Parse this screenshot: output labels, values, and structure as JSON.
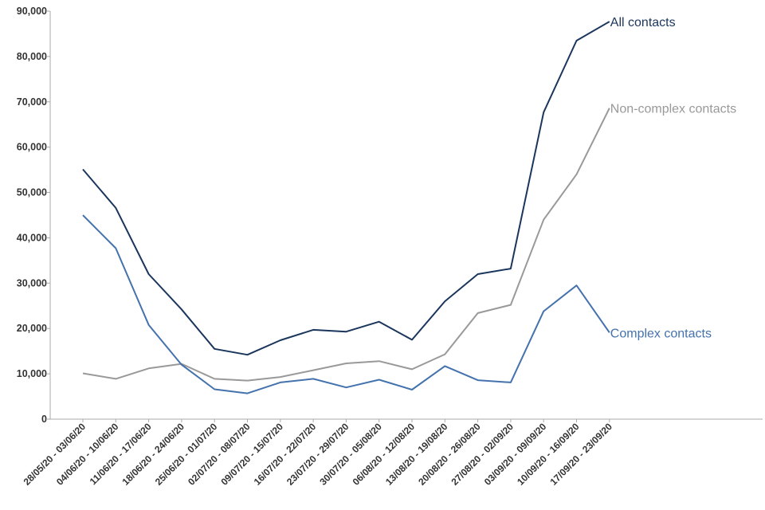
{
  "chart_data": {
    "type": "line",
    "title": "",
    "xlabel": "",
    "ylabel": "",
    "ylim": [
      0,
      90000
    ],
    "yticks": [
      0,
      10000,
      20000,
      30000,
      40000,
      50000,
      60000,
      70000,
      80000,
      90000
    ],
    "ytick_labels": [
      "0",
      "10,000",
      "20,000",
      "30,000",
      "40,000",
      "50,000",
      "60,000",
      "70,000",
      "80,000",
      "90,000"
    ],
    "grid": false,
    "categories": [
      "28/05/20 - 03/06/20",
      "04/06/20 - 10/06/20",
      "11/06/20 - 17/06/20",
      "18/06/20 - 24/06/20",
      "25/06/20 - 01/07/20",
      "02/07/20 - 08/07/20",
      "09/07/20 - 15/07/20",
      "16/07/20 - 22/07/20",
      "23/07/20 - 29/07/20",
      "30/07/20 - 05/08/20",
      "06/08/20 - 12/08/20",
      "13/08/20 - 19/08/20",
      "20/08/20 - 26/08/20",
      "27/08/20 - 02/09/20",
      "03/09/20 - 09/09/20",
      "10/09/20 - 16/09/20",
      "17/09/20 - 23/09/20"
    ],
    "series": [
      {
        "name": "All contacts",
        "color": "#1b365d",
        "values": [
          55100,
          46600,
          32000,
          24200,
          15500,
          14200,
          17400,
          19700,
          19300,
          21500,
          17500,
          26000,
          32000,
          33200,
          67700,
          83500,
          87700
        ]
      },
      {
        "name": "Non-complex contacts",
        "color": "#999999",
        "values": [
          10100,
          8900,
          11200,
          12200,
          8900,
          8500,
          9300,
          10800,
          12300,
          12800,
          11000,
          14300,
          23400,
          25200,
          44000,
          54000,
          68600
        ]
      },
      {
        "name": "Complex contacts",
        "color": "#4472ac",
        "values": [
          45000,
          37700,
          20800,
          12000,
          6600,
          5700,
          8100,
          8900,
          7000,
          8700,
          6500,
          11700,
          8600,
          8100,
          23800,
          29500,
          19100
        ]
      }
    ]
  }
}
